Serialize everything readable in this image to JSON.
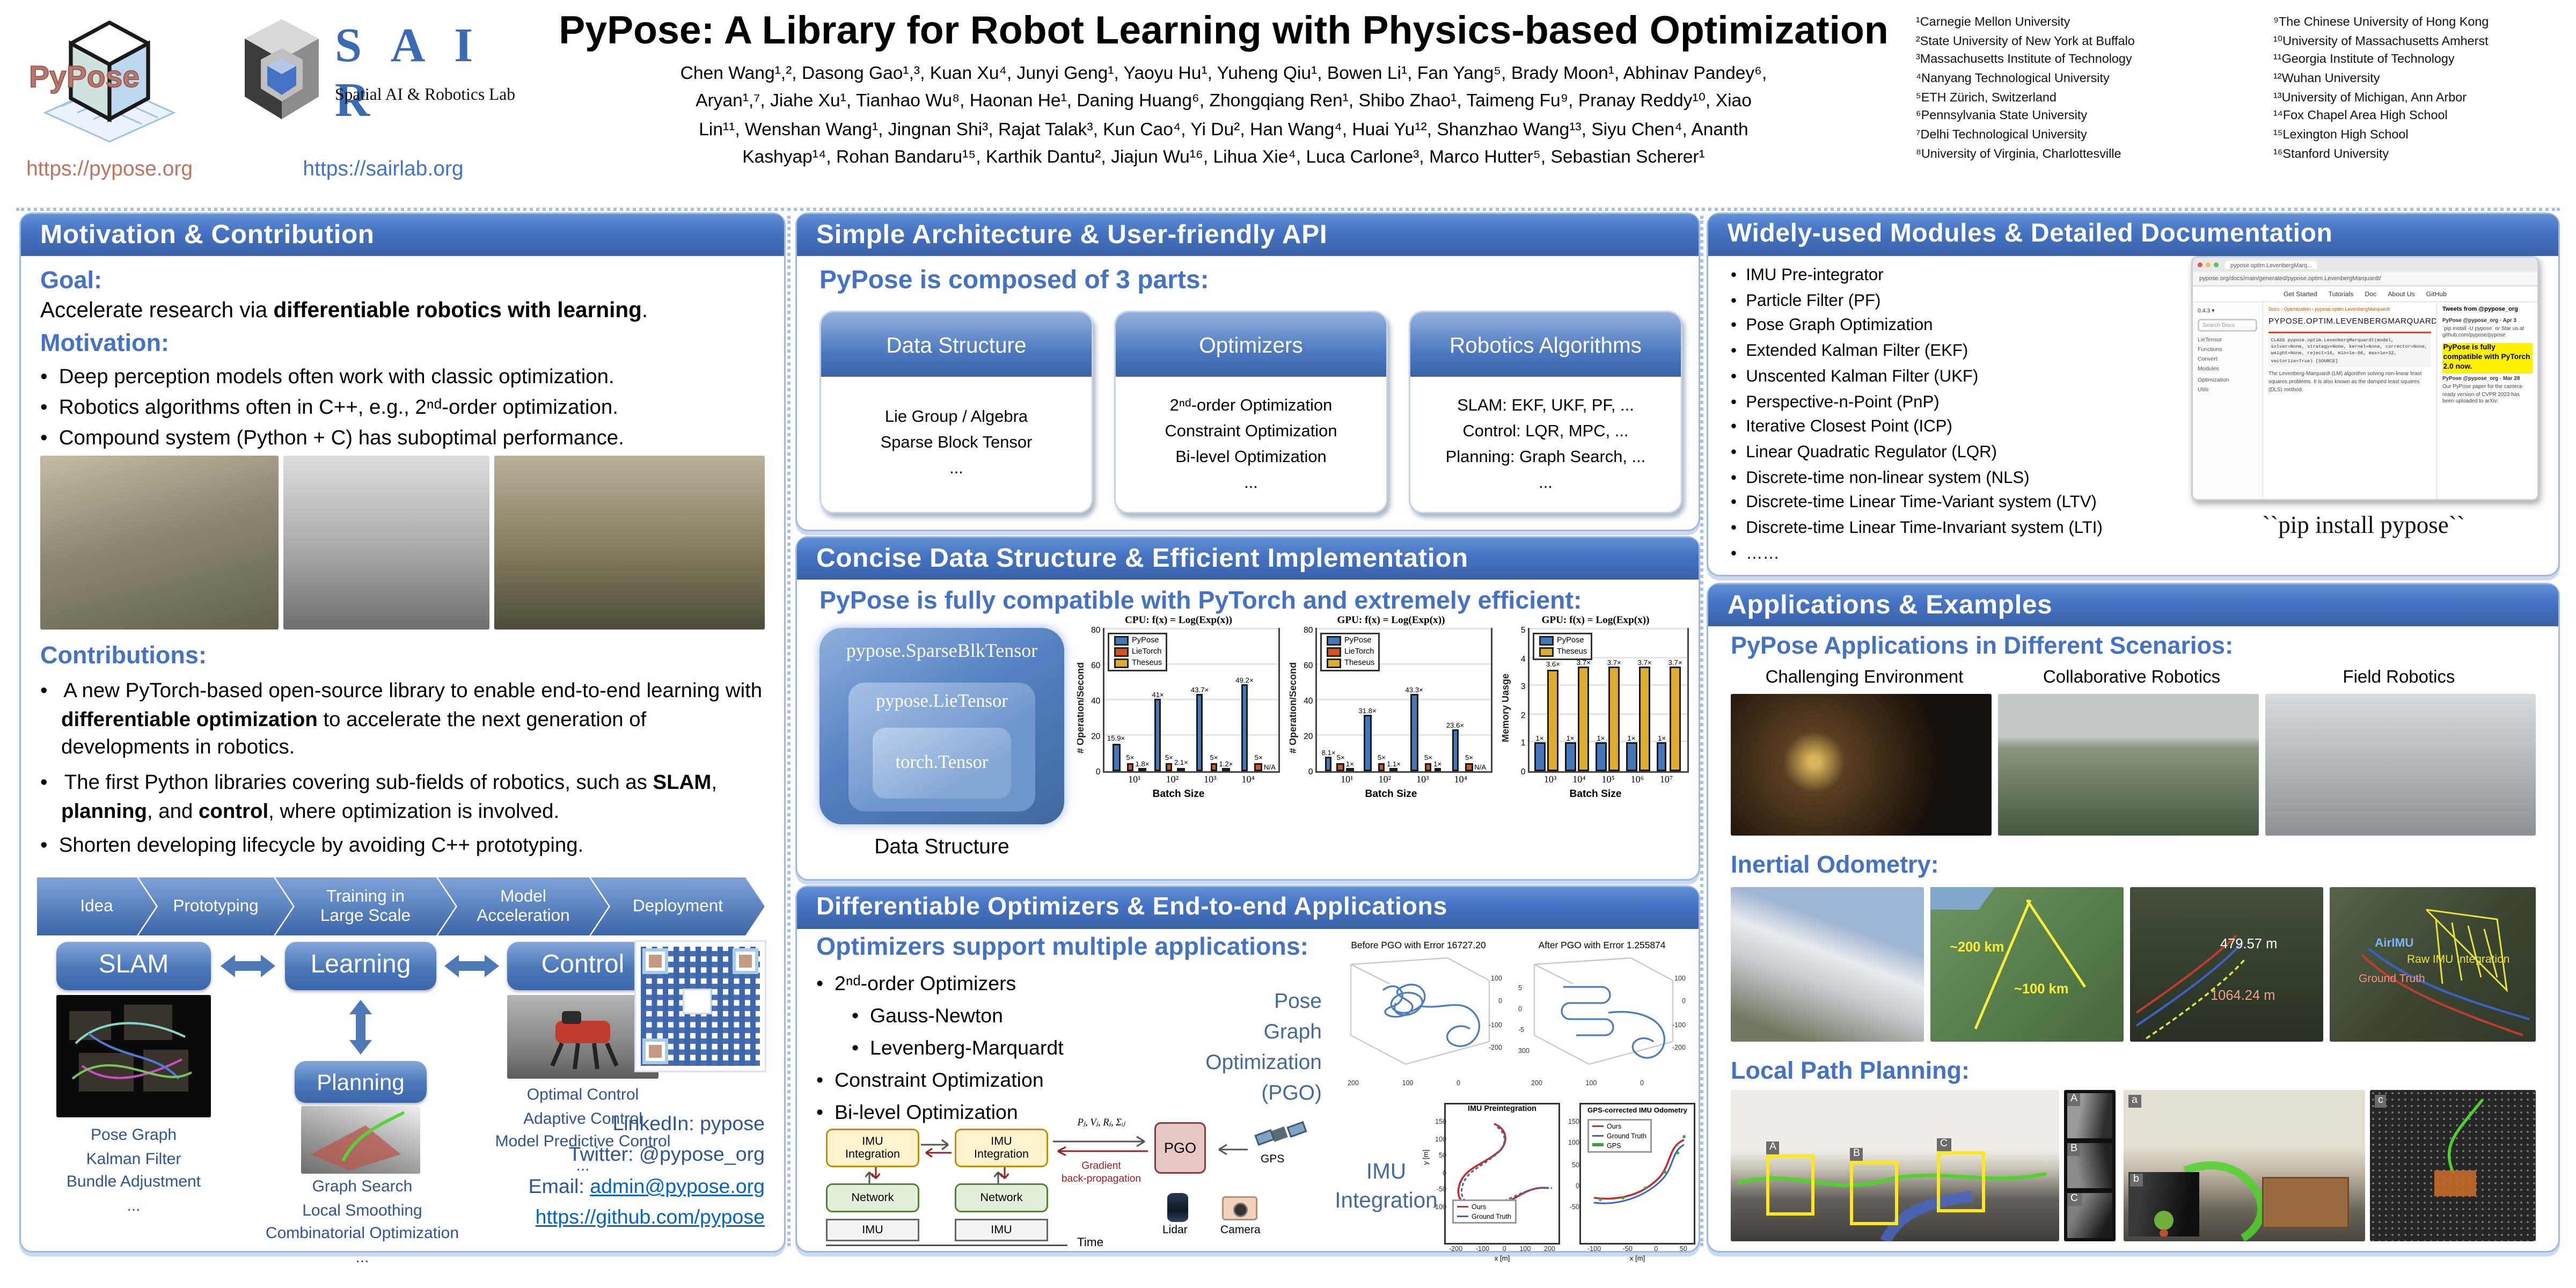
{
  "header": {
    "title": "PyPose: A Library for Robot Learning with Physics-based Optimization",
    "pypose_logo_text": "PyPose",
    "pypose_url": "https://pypose.org",
    "sair_letters": "S A I R",
    "sair_subtitle": "Spatial AI & Robotics Lab",
    "sair_url": "https://sairlab.org",
    "author_lines": [
      "Chen Wang¹,², Dasong Gao¹,³, Kuan Xu⁴, Junyi Geng¹, Yaoyu Hu¹, Yuheng Qiu¹, Bowen Li¹, Fan Yang⁵, Brady Moon¹, Abhinav Pandey⁶,",
      "Aryan¹,⁷, Jiahe Xu¹, Tianhao Wu⁸, Haonan He¹, Daning Huang⁶, Zhongqiang Ren¹, Shibo Zhao¹, Taimeng Fu⁹, Pranay Reddy¹⁰, Xiao",
      "Lin¹¹, Wenshan Wang¹, Jingnan Shi³, Rajat Talak³, Kun Cao⁴, Yi Du², Han Wang⁴, Huai Yu¹², Shanzhao Wang¹³, Siyu Chen⁴, Ananth",
      "Kashyap¹⁴, Rohan Bandaru¹⁵, Karthik Dantu², Jiajun Wu¹⁶, Lihua Xie⁴, Luca Carlone³, Marco Hutter⁵, Sebastian Scherer¹"
    ],
    "affiliations_col1": [
      "¹Carnegie Mellon University",
      "²State University of New York at Buffalo",
      "³Massachusetts Institute of Technology",
      "⁴Nanyang Technological University",
      "⁵ETH Zürich, Switzerland",
      "⁶Pennsylvania State University",
      "⁷Delhi Technological University",
      "⁸University of Virginia, Charlottesville"
    ],
    "affiliations_col2": [
      "⁹The Chinese University of Hong Kong",
      "¹⁰University of Massachusetts Amherst",
      "¹¹Georgia Institute of Technology",
      "¹²Wuhan University",
      "¹³University of Michigan, Ann Arbor",
      "¹⁴Fox Chapel Area High School",
      "¹⁵Lexington High School",
      "¹⁶Stanford University"
    ]
  },
  "left": {
    "header": "Motivation & Contribution",
    "goal_label": "Goal:",
    "goal": {
      "pre": "Accelerate research via ",
      "bold": "differentiable robotics with learning",
      "post": "."
    },
    "motivation_label": "Motivation:",
    "motivation_bullets": [
      "Deep perception models often work with classic optimization.",
      "Robotics algorithms often in C++, e.g., 2ⁿᵈ-order optimization.",
      "Compound system (Python + C) has suboptimal performance."
    ],
    "contributions_label": "Contributions:",
    "c1": {
      "pre": "A new PyTorch-based open-source library to enable end-to-end learning with ",
      "bold": "differentiable optimization",
      "post": " to accelerate the next generation of developments in robotics."
    },
    "c2": {
      "p1": "The first Python libraries covering sub-fields of robotics, such as ",
      "b1": "SLAM",
      "p2": ", ",
      "b2": "planning",
      "p3": ", and ",
      "b3": "control",
      "p4": ", where optimization is involved."
    },
    "c3": "Shorten developing lifecycle by avoiding C++ prototyping.",
    "flow": [
      "Idea",
      "Prototyping",
      "Training in\nLarge Scale",
      "Model\nAcceleration",
      "Deployment"
    ],
    "diagram": {
      "slam": "SLAM",
      "learning": "Learning",
      "control": "Control",
      "planning": "Planning",
      "slam_items": [
        "Pose Graph",
        "Kalman Filter",
        "Bundle Adjustment",
        "..."
      ],
      "planning_items": [
        "Graph Search",
        "Local Smoothing",
        "Combinatorial Optimization",
        "..."
      ],
      "control_items": [
        "Optimal Control",
        "Adaptive Control",
        "Model Predictive Control",
        "..."
      ]
    },
    "contact": {
      "linkedin": "LinkedIn: pypose",
      "twitter": "Twitter: @pypose_org",
      "email_label": "Email: ",
      "email": "admin@pypose.org",
      "github": "https://github.com/pypose"
    }
  },
  "middle": {
    "arch": {
      "header": "Simple Architecture & User-friendly API",
      "intro": "PyPose is composed of 3 parts:",
      "cards": [
        {
          "title": "Data Structure",
          "lines": [
            "Lie Group / Algebra",
            "Sparse Block Tensor",
            "..."
          ]
        },
        {
          "title": "Optimizers",
          "lines": [
            "2ⁿᵈ-order Optimization",
            "Constraint Optimization",
            "Bi-level Optimization",
            "..."
          ]
        },
        {
          "title": "Robotics Algorithms",
          "lines": [
            "SLAM: EKF, UKF, PF, ...",
            "Control: LQR, MPC, ...",
            "Planning: Graph Search, ...",
            "..."
          ]
        }
      ]
    },
    "concise": {
      "header": "Concise Data Structure & Efficient Implementation",
      "intro": "PyPose is fully compatible with PyTorch and extremely efficient:",
      "tensors": [
        "pypose.SparseBlkTensor",
        "pypose.LieTensor",
        "torch.Tensor"
      ],
      "caption": "Data Structure"
    },
    "optim": {
      "header": "Differentiable Optimizers & End-to-end Applications",
      "intro": "Optimizers support multiple applications:",
      "b1": "2ⁿᵈ-order Optimizers",
      "sub": [
        "Gauss-Newton",
        "Levenberg-Marquardt"
      ],
      "b2": "Constraint Optimization",
      "b3": "Bi-level Optimization",
      "pgo_label_lines": [
        "Pose",
        "Graph",
        "Optimization",
        "(PGO)"
      ],
      "pgo_before": "Before PGO with Error 16727.20",
      "pgo_after": "After PGO with Error 1.255874",
      "pgo_ticks_bottom": [
        "200",
        "100",
        "0"
      ],
      "pgo_ticks_right": [
        "100",
        "0",
        "-100",
        "-200"
      ],
      "pgo_ticks_left": [
        "5",
        "0",
        "-5",
        "300"
      ],
      "imu_label_lines": [
        "IMU",
        "Integration"
      ],
      "flow": {
        "imu_int": "IMU\nIntegration",
        "network": "Network",
        "imu": "IMU",
        "pgo": "PGO",
        "grad": "Gradient\nback-propagation",
        "pvr": "Pⱼ, Vⱼ, Rⱼ, Σᵢⱼ",
        "gps": "GPS",
        "lidar": "Lidar",
        "camera": "Camera",
        "time": "Time"
      },
      "plot1": {
        "title": "IMU Preintegration",
        "legend": [
          "Ours",
          "Ground Truth"
        ],
        "xlabel": "x [m]",
        "ylabel": "y [m]",
        "yticks": [
          "150",
          "100",
          "50",
          "0",
          "-50",
          "-100"
        ],
        "xticks": [
          "-200",
          "-100",
          "0",
          "100",
          "200"
        ]
      },
      "plot2": {
        "title": "GPS-corrected IMU Odometry",
        "legend": [
          "Ours",
          "Ground Truth",
          "GPS"
        ],
        "xlabel": "x [m]",
        "ylabel": "y [m]",
        "yticks": [
          "150",
          "100",
          "50",
          "0",
          "-50"
        ],
        "xticks": [
          "-100",
          "-50",
          "0",
          "50"
        ]
      }
    }
  },
  "right": {
    "modules": {
      "header": "Widely-used Modules & Detailed Documentation",
      "items": [
        "IMU Pre-integrator",
        "Particle Filter (PF)",
        "Pose Graph Optimization",
        "Extended Kalman Filter (EKF)",
        "Unscented Kalman Filter (UKF)",
        "Perspective-n-Point (PnP)",
        "Iterative Closest Point (ICP)",
        "Linear Quadratic Regulator (LQR)",
        "Discrete-time non-linear system (NLS)",
        "Discrete-time Linear Time-Variant system (LTV)",
        "Discrete-time Linear Time-Invariant system (LTI)",
        "……"
      ],
      "pip": "``pip install pypose``"
    },
    "docs": {
      "tab": "pypose.optim.LevenbergMarq...",
      "url": "pypose.org/docs/main/generated/pypose.optim.LevenbergMarquardt/",
      "nav": [
        "Get Started",
        "Tutorials",
        "Doc",
        "About Us",
        "GitHub"
      ],
      "version": "0.4.3 ▾",
      "search": "Search Docs",
      "sidebar": [
        "LieTensor",
        "Functions",
        "Convert",
        "Modules",
        "Optimization",
        "Utils"
      ],
      "breadcrumb": "Docs › Optimization › pypose.optim.LevenbergMarquardt",
      "heading": "PYPOSE.OPTIM.LEVENBERGMARQUARDT",
      "class_sig": "CLASS pypose.optim.LevenbergMarquardt(model, solver=None, strategy=None, kernel=None, corrector=None, weight=None, reject=16, min=1e-06, max=1e+32, vectorize=True) [SOURCE]",
      "desc": "The Levenberg-Marquardt (LM) algorithm solving non-linear least squares problems. It is also known as the damped least squares (DLS) method.",
      "tweets_header": "Tweets from @pypose_org",
      "tweet1_user": "PyPose @pypose_org · Apr 3",
      "tweet1": "`pip install -U pypose` or Star us at github.com/pypose/pypose",
      "highlight": "PyPose is fully compatible with PyTorch 2.0 now.",
      "tweet2_user": "PyPose @pypose_org · Mar 28",
      "tweet2": "Our PyPose paper for the camera-ready version of CVPR 2023 has been uploaded to arXiv:"
    },
    "apps": {
      "header": "Applications & Examples",
      "scenarios_title": "PyPose Applications in Different Scenarios:",
      "scenario_labels": [
        "Challenging Environment",
        "Collaborative Robotics",
        "Field Robotics"
      ],
      "inertial_title": "Inertial Odometry:",
      "ann": {
        "d200": "~200 km",
        "d100": "~100 km",
        "m479": "479.57 m",
        "m1064": "1064.24 m",
        "airimu": "AirIMU",
        "raw": "Raw IMU Integration",
        "gt": "Ground Truth"
      },
      "local_title": "Local Path Planning:",
      "boxes": [
        "A",
        "B",
        "C"
      ],
      "insets": {
        "a": "a",
        "b": "b",
        "c": "c"
      }
    }
  },
  "chart_data": [
    {
      "type": "bar",
      "title": "CPU: f(x) = Log(Exp(x))",
      "ylabel": "# Operation/Second",
      "xlabel": "Batch Size",
      "ylim": [
        0,
        80
      ],
      "yticks": [
        0,
        20,
        40,
        60,
        80
      ],
      "categories": [
        "10¹",
        "10²",
        "10³",
        "10⁴"
      ],
      "barw": 4.6,
      "series": [
        {
          "name": "PyPose",
          "color": "#4477BB",
          "values": [
            15.9,
            41,
            43.7,
            49.2
          ],
          "labels": [
            "15.9×",
            "41×",
            "43.7×",
            "49.2×"
          ]
        },
        {
          "name": "LieTorch",
          "color": "#D95319",
          "values": [
            5,
            5,
            5,
            5
          ],
          "labels": [
            "5×",
            "5×",
            "5×",
            "5×"
          ]
        },
        {
          "name": "Theseus",
          "color": "#E0AC2B",
          "values": [
            1.8,
            2.1,
            1.2,
            null
          ],
          "labels": [
            "1.8×",
            "2.1×",
            "1.2×",
            "N/A"
          ]
        }
      ]
    },
    {
      "type": "bar",
      "title": "GPU: f(x) = Log(Exp(x))",
      "ylabel": "# Operation/Second",
      "xlabel": "Batch Size",
      "ylim": [
        0,
        80
      ],
      "yticks": [
        0,
        20,
        40,
        60,
        80
      ],
      "categories": [
        "10¹",
        "10²",
        "10³",
        "10⁴"
      ],
      "barw": 4.6,
      "series": [
        {
          "name": "PyPose",
          "color": "#4477BB",
          "values": [
            8.1,
            31.8,
            43.3,
            23.6
          ],
          "labels": [
            "8.1×",
            "31.8×",
            "43.3×",
            "23.6×"
          ]
        },
        {
          "name": "LieTorch",
          "color": "#D95319",
          "values": [
            5,
            5,
            5,
            5
          ],
          "labels": [
            "5×",
            "5×",
            "5×",
            "5×"
          ]
        },
        {
          "name": "Theseus",
          "color": "#E0AC2B",
          "values": [
            1,
            1.1,
            1,
            null
          ],
          "labels": [
            "1×",
            "1.1×",
            "1×",
            "N/A"
          ]
        }
      ]
    },
    {
      "type": "bar",
      "title": "GPU: f(x) = Log(Exp(x))",
      "ylabel": "Memory Uasge",
      "xlabel": "Batch Size",
      "ylim": [
        0,
        5
      ],
      "yticks": [
        0,
        1,
        2,
        3,
        4,
        5
      ],
      "categories": [
        "10³",
        "10⁴",
        "10⁵",
        "10⁶",
        "10⁷"
      ],
      "barw": 6.5,
      "series": [
        {
          "name": "PyPose",
          "color": "#4477BB",
          "values": [
            1,
            1,
            1,
            1,
            1
          ],
          "labels": [
            "1×",
            "1×",
            "1×",
            "1×",
            "1×"
          ]
        },
        {
          "name": "Theseus",
          "color": "#E0AC2B",
          "values": [
            3.6,
            3.7,
            3.7,
            3.7,
            3.7
          ],
          "labels": [
            "3.6×",
            "3.7×",
            "3.7×",
            "3.7×",
            "3.7×"
          ]
        }
      ]
    }
  ]
}
